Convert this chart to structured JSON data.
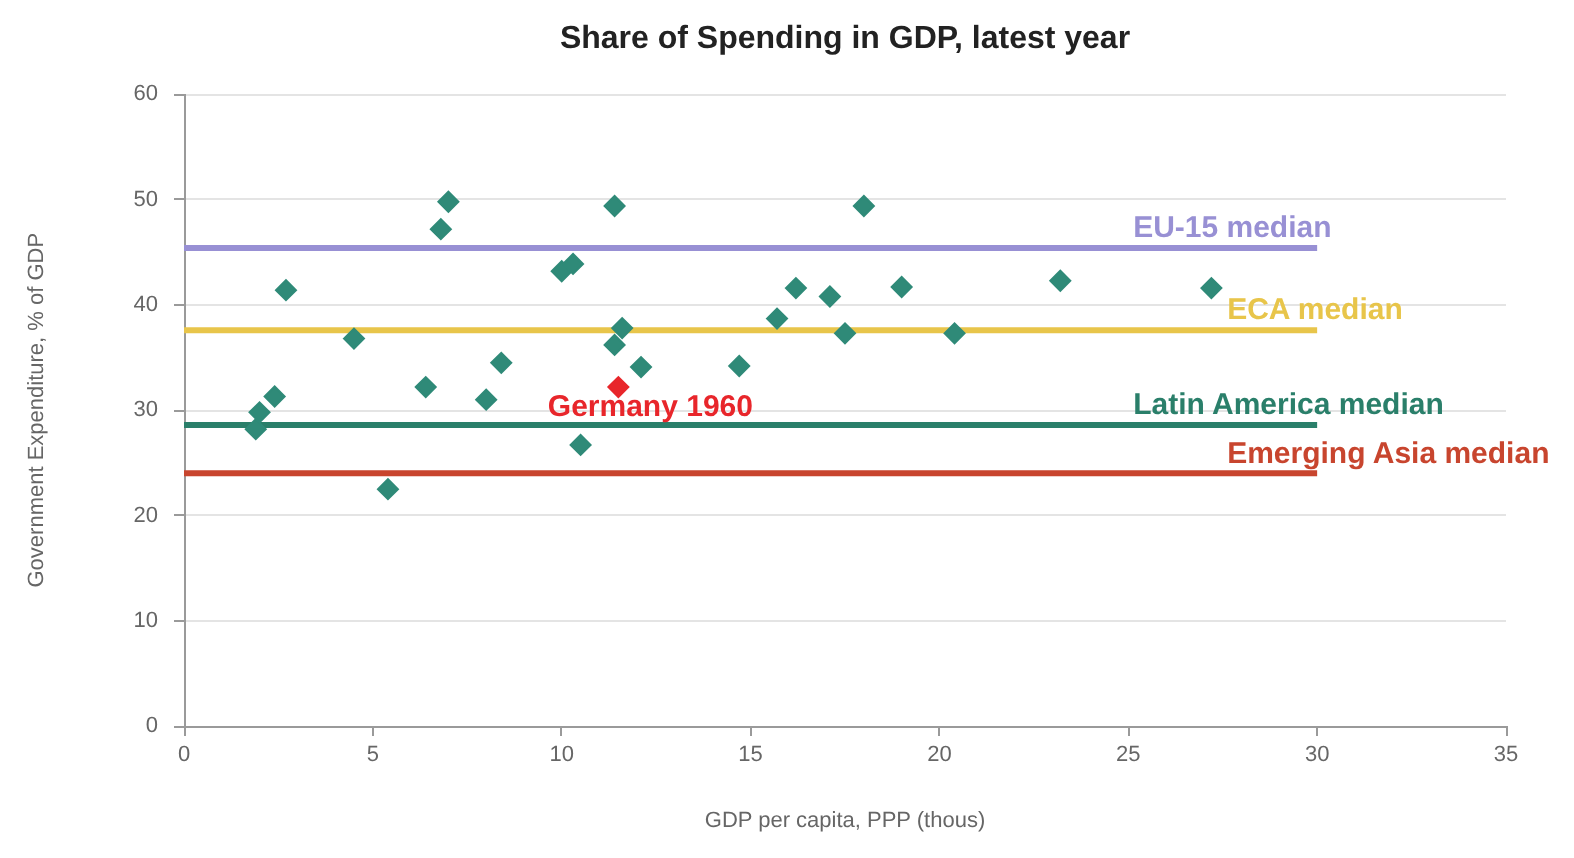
{
  "chart_data": {
    "type": "scatter",
    "title": "Share of Spending in GDP, latest year",
    "xlabel": "GDP per capita, PPP (thous)",
    "ylabel": "Government Expenditure, % of GDP",
    "xlim": [
      0,
      35
    ],
    "xticks": [
      0,
      5,
      10,
      15,
      20,
      25,
      30,
      35
    ],
    "ylim": [
      0,
      60
    ],
    "yticks": [
      0,
      10,
      20,
      30,
      40,
      50,
      60
    ],
    "grid": "y",
    "legend": false,
    "marker": "diamond",
    "series": [
      {
        "color": "#2f8a78",
        "x": [
          1.9,
          2.0,
          2.4,
          2.7,
          4.5,
          5.4,
          6.4,
          6.8,
          7.0,
          8.0,
          8.4,
          10.0,
          10.3,
          10.5,
          11.4,
          11.4,
          11.6,
          12.1,
          14.7,
          15.7,
          16.2,
          17.1,
          17.5,
          18.0,
          19.0,
          20.4,
          23.2,
          27.2
        ],
        "values": [
          28.2,
          29.8,
          31.3,
          41.4,
          36.8,
          22.5,
          32.2,
          47.2,
          49.8,
          31.0,
          34.5,
          43.2,
          43.9,
          26.7,
          49.4,
          36.2,
          37.8,
          34.1,
          34.2,
          38.7,
          41.6,
          40.8,
          37.3,
          49.4,
          41.7,
          37.3,
          42.3,
          41.6
        ]
      },
      {
        "name": "Germany 1960",
        "color": "#e8262b",
        "x": [
          11.5
        ],
        "values": [
          32.2
        ]
      },
      {
        "name": "EU-15 median",
        "type": "line",
        "marker": "none",
        "color": "#9890d4",
        "x": [
          0,
          30
        ],
        "values": [
          45.4,
          45.4
        ]
      },
      {
        "name": "ECA median",
        "type": "line",
        "marker": "none",
        "color": "#e8c54a",
        "x": [
          0,
          30
        ],
        "values": [
          37.6,
          37.6
        ]
      },
      {
        "name": "Latin America median",
        "type": "line",
        "marker": "none",
        "color": "#2a7f6a",
        "x": [
          0,
          30
        ],
        "values": [
          28.6,
          28.6
        ]
      },
      {
        "name": "Emerging Asia median",
        "type": "line",
        "marker": "none",
        "color": "#c8452e",
        "x": [
          0,
          30
        ],
        "values": [
          24.0,
          24.0
        ]
      }
    ]
  }
}
